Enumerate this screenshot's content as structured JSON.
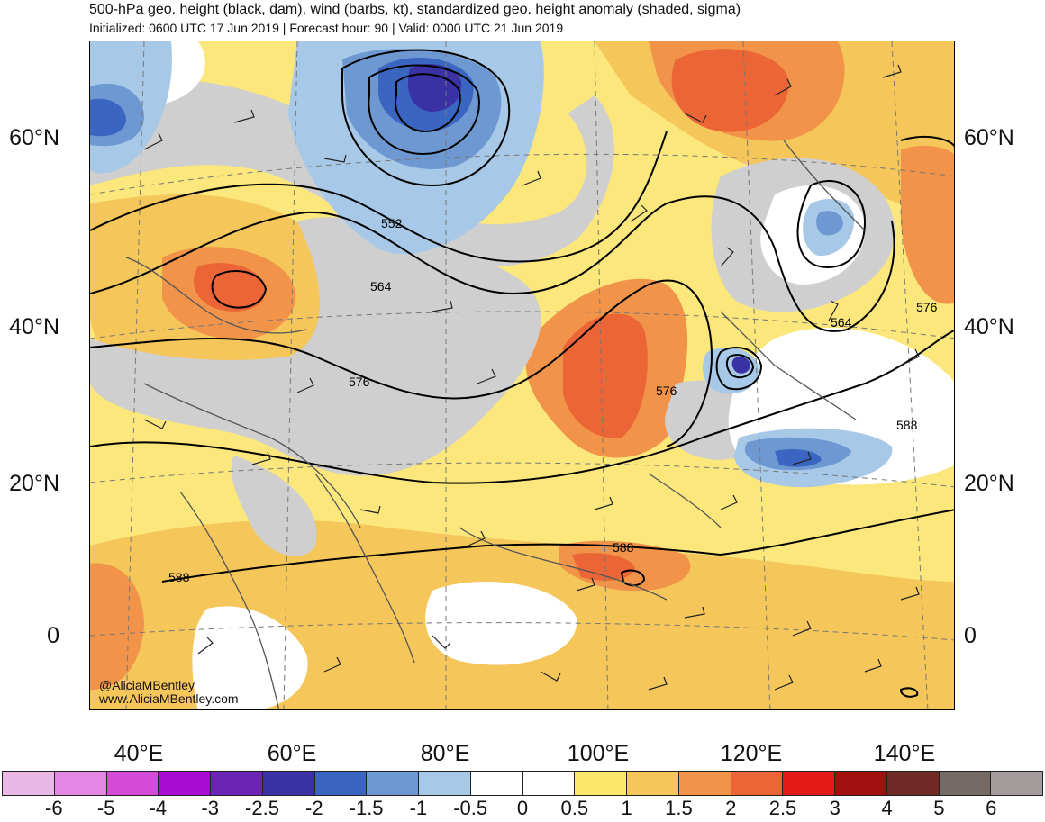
{
  "title": "500-hPa geo. height (black, dam), wind (barbs, kt), standardized geo. height anomaly (shaded, sigma)",
  "subtitle": "Initialized: 0600 UTC 17 Jun 2019 | Forecast hour: 90 | Valid: 0000 UTC 21 Jun 2019",
  "credit": {
    "handle": "@AliciaMBentley",
    "site": "www.AliciaMBentley.com"
  },
  "lat_labels": [
    "60°N",
    "40°N",
    "20°N",
    "0"
  ],
  "lon_labels": [
    "40°E",
    "60°E",
    "80°E",
    "100°E",
    "120°E",
    "140°E"
  ],
  "contour_labels": [
    "552",
    "564",
    "576",
    "576",
    "564",
    "576",
    "588",
    "588",
    "588"
  ],
  "colorbar": {
    "colors": [
      "#e9b8e6",
      "#e486e3",
      "#d64ad8",
      "#a80bd2",
      "#6c24b4",
      "#3a31a4",
      "#3a66c2",
      "#6d98d2",
      "#a7c9e7",
      "#ffffff",
      "#ffffff",
      "#fae76c",
      "#f5c65a",
      "#f1944a",
      "#ec6537",
      "#e61919",
      "#a10f0f",
      "#6f2a26",
      "#766a67",
      "#a39c9c"
    ],
    "ticks": [
      "-6",
      "-5",
      "-4",
      "-3",
      "-2.5",
      "-2",
      "-1.5",
      "-1",
      "-0.5",
      "0",
      "0.5",
      "1",
      "1.5",
      "2",
      "2.5",
      "3",
      "4",
      "5",
      "6"
    ]
  }
}
